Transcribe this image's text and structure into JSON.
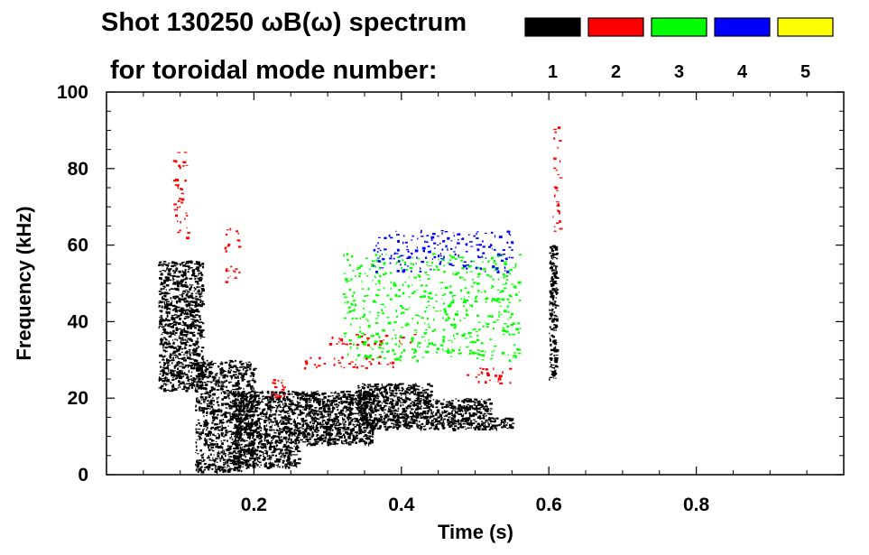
{
  "chart_data": {
    "type": "spectrogram",
    "title_line1": "Shot 130250 ωB(ω) spectrum",
    "title_line2": "for toroidal mode number:",
    "xlabel": "Time (s)",
    "ylabel": "Frequency (kHz)",
    "xlim": [
      0.0,
      1.0
    ],
    "ylim": [
      0,
      100
    ],
    "x_ticks": [
      0.2,
      0.4,
      0.6,
      0.8
    ],
    "x_tick_labels": [
      "0.2",
      "0.4",
      "0.6",
      "0.8"
    ],
    "y_ticks": [
      0,
      20,
      40,
      60,
      80,
      100
    ],
    "y_tick_labels": [
      "0",
      "20",
      "40",
      "60",
      "80",
      "100"
    ],
    "legend": [
      {
        "label": "1",
        "color": "#000000"
      },
      {
        "label": "2",
        "color": "#ff0000"
      },
      {
        "label": "3",
        "color": "#00ff00"
      },
      {
        "label": "4",
        "color": "#0000ff"
      },
      {
        "label": "5",
        "color": "#ffff00"
      }
    ],
    "series": [
      {
        "name": "n=1",
        "color": "#000000",
        "regions": [
          {
            "t": [
              0.07,
              0.13
            ],
            "f": [
              22,
              56
            ]
          },
          {
            "t": [
              0.12,
              0.2
            ],
            "f": [
              1,
              30
            ]
          },
          {
            "t": [
              0.17,
              0.26
            ],
            "f": [
              2,
              22
            ]
          },
          {
            "t": [
              0.26,
              0.36
            ],
            "f": [
              8,
              22
            ]
          },
          {
            "t": [
              0.34,
              0.44
            ],
            "f": [
              12,
              24
            ]
          },
          {
            "t": [
              0.44,
              0.52
            ],
            "f": [
              12,
              20
            ]
          },
          {
            "t": [
              0.52,
              0.55
            ],
            "f": [
              12,
              15
            ]
          },
          {
            "t": [
              0.6,
              0.61
            ],
            "f": [
              25,
              60
            ]
          }
        ]
      },
      {
        "name": "n=2",
        "color": "#ff0000",
        "regions": [
          {
            "t": [
              0.09,
              0.11
            ],
            "f": [
              60,
              85
            ]
          },
          {
            "t": [
              0.16,
              0.18
            ],
            "f": [
              50,
              65
            ]
          },
          {
            "t": [
              0.22,
              0.24
            ],
            "f": [
              20,
              25
            ]
          },
          {
            "t": [
              0.26,
              0.4
            ],
            "f": [
              28,
              31
            ]
          },
          {
            "t": [
              0.3,
              0.42
            ],
            "f": [
              34,
              37
            ]
          },
          {
            "t": [
              0.48,
              0.55
            ],
            "f": [
              24,
              28
            ]
          },
          {
            "t": [
              0.605,
              0.615
            ],
            "f": [
              60,
              92
            ]
          }
        ]
      },
      {
        "name": "n=3",
        "color": "#00ff00",
        "regions": [
          {
            "t": [
              0.32,
              0.56
            ],
            "f": [
              30,
              58
            ]
          }
        ]
      },
      {
        "name": "n=4",
        "color": "#0000ff",
        "regions": [
          {
            "t": [
              0.36,
              0.55
            ],
            "f": [
              53,
              64
            ]
          }
        ]
      },
      {
        "name": "n=5",
        "color": "#ffff00",
        "regions": []
      }
    ]
  }
}
